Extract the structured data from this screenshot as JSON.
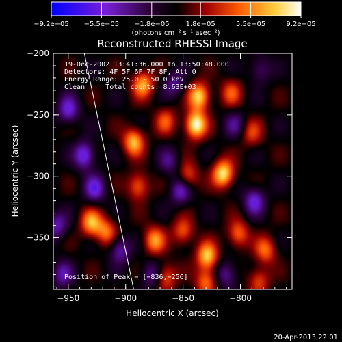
{
  "chart_data": {
    "type": "heatmap",
    "title": "Reconstructed RHESSI Image",
    "xlabel": "Heliocentric X (arcsec)",
    "ylabel": "Heliocentric Y (arcsec)",
    "xlim": [
      -963,
      -755
    ],
    "ylim": [
      -392,
      -200
    ],
    "x_ticks": [
      -950,
      -900,
      -850,
      -800
    ],
    "x_tick_labels": [
      "−950",
      "−900",
      "−850",
      "−800"
    ],
    "y_ticks": [
      -200,
      -250,
      -300,
      -350
    ],
    "y_tick_labels": [
      "−200",
      "−250",
      "−300",
      "−350"
    ],
    "colorbar": {
      "min": -9.2e-05,
      "max": 9.2e-05,
      "tick_labels": [
        "−9.2e−05",
        "−5.5e−05",
        "−1.8e−05",
        "1.8e−05",
        "5.5e−05",
        "9.2e−05"
      ],
      "tick_values": [
        -9.2e-05,
        -5.5e-05,
        -1.8e-05,
        1.8e-05,
        5.5e-05,
        9.2e-05
      ],
      "units_label": "(photons cm⁻² s⁻¹ asec⁻²)",
      "colors": [
        "#0000ff",
        "#8a2be2",
        "#2a002a",
        "#000000",
        "#b00000",
        "#ff6000",
        "#ffff80",
        "#ffffff"
      ]
    },
    "annotations": [
      "19-Dec-2002 13:41:36.000 to 13:50:48.000",
      "Detectors: 4F 5F 6F 7F 8F, Att 0",
      "Energy Range: 25.0 - 50.0 keV",
      "Clean     Total counts: 8.63E+03"
    ],
    "peak_label": "Position of Peak = [−836,−256]",
    "peak_position": [
      -836,
      -256
    ],
    "limb_line": [
      [
        -936,
        -200
      ],
      [
        -893,
        -392
      ]
    ],
    "features": [
      {
        "x": -839,
        "y": -258,
        "v": 1.0
      },
      {
        "x": -836,
        "y": -235,
        "v": 0.85
      },
      {
        "x": -885,
        "y": -225,
        "v": 0.7
      },
      {
        "x": -893,
        "y": -272,
        "v": 0.75
      },
      {
        "x": -889,
        "y": -308,
        "v": 0.55
      },
      {
        "x": -865,
        "y": -255,
        "v": 0.45
      },
      {
        "x": -846,
        "y": -300,
        "v": 0.5
      },
      {
        "x": -815,
        "y": -298,
        "v": 0.9
      },
      {
        "x": -808,
        "y": -232,
        "v": 0.45
      },
      {
        "x": -790,
        "y": -265,
        "v": 0.4
      },
      {
        "x": -930,
        "y": -338,
        "v": 0.7
      },
      {
        "x": -917,
        "y": -345,
        "v": 0.55
      },
      {
        "x": -875,
        "y": -352,
        "v": 0.65
      },
      {
        "x": -850,
        "y": -345,
        "v": 0.5
      },
      {
        "x": -829,
        "y": -365,
        "v": 0.8
      },
      {
        "x": -802,
        "y": -347,
        "v": 0.55
      },
      {
        "x": -778,
        "y": -360,
        "v": 0.55
      },
      {
        "x": -865,
        "y": -382,
        "v": 0.5
      },
      {
        "x": -830,
        "y": -386,
        "v": 0.55
      },
      {
        "x": -784,
        "y": -385,
        "v": 0.45
      },
      {
        "x": -950,
        "y": -246,
        "v": -0.6
      },
      {
        "x": -936,
        "y": -283,
        "v": -0.7
      },
      {
        "x": -927,
        "y": -310,
        "v": -0.6
      },
      {
        "x": -905,
        "y": -360,
        "v": -0.5
      },
      {
        "x": -878,
        "y": -380,
        "v": -0.4
      },
      {
        "x": -852,
        "y": -312,
        "v": -0.55
      },
      {
        "x": -858,
        "y": -225,
        "v": -0.4
      },
      {
        "x": -862,
        "y": -288,
        "v": -0.35
      },
      {
        "x": -788,
        "y": -320,
        "v": -0.6
      },
      {
        "x": -783,
        "y": -213,
        "v": -0.35
      },
      {
        "x": -805,
        "y": -258,
        "v": -0.35
      },
      {
        "x": -960,
        "y": -340,
        "v": -0.5
      },
      {
        "x": -812,
        "y": -380,
        "v": -0.45
      },
      {
        "x": -955,
        "y": -380,
        "v": -0.45
      }
    ]
  },
  "footer": {
    "timestamp": "20-Apr-2013 22:01"
  }
}
